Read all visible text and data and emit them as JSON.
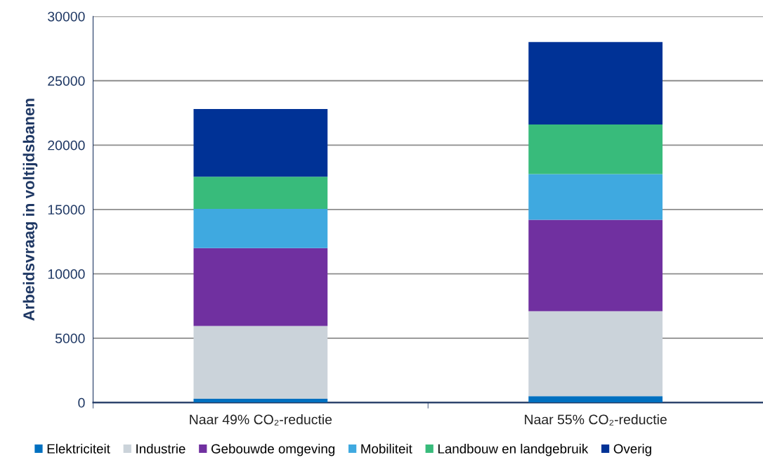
{
  "chart_data": {
    "type": "bar",
    "stacked": true,
    "ylabel": "Arbeidsvraag in voltijdsbanen",
    "categories": [
      "Naar 49% CO₂-reductie",
      "Naar 55% CO₂-reductie"
    ],
    "series": [
      {
        "name": "Elektriciteit",
        "color": "#0070c0",
        "values": [
          300,
          500
        ]
      },
      {
        "name": "Industrie",
        "color": "#cbd3da",
        "values": [
          5650,
          6600
        ]
      },
      {
        "name": "Gebouwde omgeving",
        "color": "#7030a0",
        "values": [
          6050,
          7100
        ]
      },
      {
        "name": "Mobiliteit",
        "color": "#3fa9e0",
        "values": [
          3050,
          3550
        ]
      },
      {
        "name": "Landbouw en landgebruik",
        "color": "#38bb7b",
        "values": [
          2500,
          3850
        ]
      },
      {
        "name": "Overig",
        "color": "#003296",
        "values": [
          5250,
          6400
        ]
      }
    ],
    "ylim": [
      0,
      30000
    ],
    "yticks": [
      0,
      5000,
      10000,
      15000,
      20000,
      25000,
      30000
    ],
    "grid": "y",
    "legend": "bottom"
  }
}
